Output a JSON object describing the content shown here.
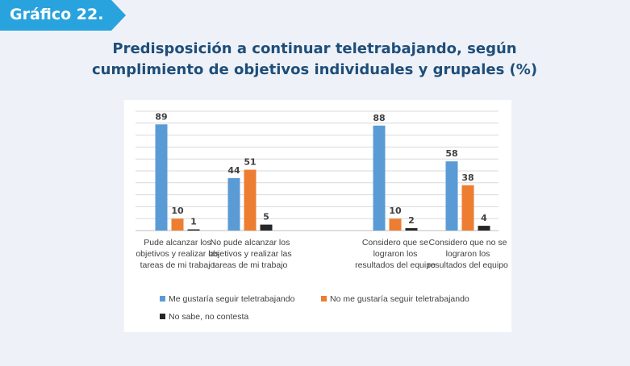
{
  "header": {
    "badge_label": "Gráfico 22.",
    "badge_color": "#29a3dd",
    "title_line1": "Predisposición a continuar teletrabajando, según",
    "title_line2": "cumplimiento de objetivos individuales y grupales (%)"
  },
  "chart_data": {
    "type": "bar",
    "title": "",
    "xlabel": "",
    "ylabel": "",
    "ylim": [
      0,
      100
    ],
    "grid": true,
    "legend_position": "bottom",
    "categories": [
      "Pude alcanzar los objetivos y realizar las tareas de mi trabajo",
      "No pude alcanzar los objetivos y realizar las tareas de mi trabajo",
      "Considero que se lograron los resultados del equipo",
      "Considero que no se lograron los resultados del equipo"
    ],
    "series": [
      {
        "name": "Me gustaría seguir teletrabajando",
        "color": "#5b9bd5",
        "values": [
          89,
          44,
          88,
          58
        ]
      },
      {
        "name": "No me gustaría seguir teletrabajando",
        "color": "#ed7d31",
        "values": [
          10,
          51,
          10,
          38
        ]
      },
      {
        "name": "No sabe, no contesta",
        "color": "#262626",
        "values": [
          1,
          5,
          2,
          4
        ]
      }
    ]
  }
}
